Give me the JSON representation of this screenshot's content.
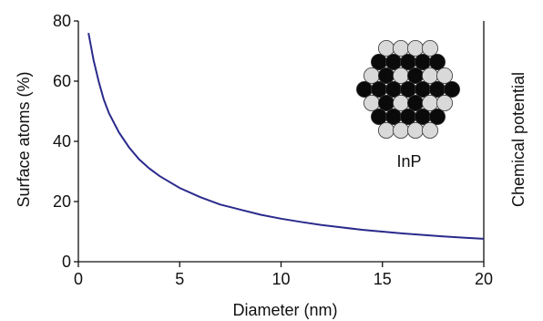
{
  "chart_data": {
    "type": "line",
    "xlabel": "Diameter (nm)",
    "ylabel": "Surface atoms (%)",
    "y2label": "Chemical potential",
    "xlim": [
      0,
      20
    ],
    "ylim": [
      0,
      80
    ],
    "x_ticks": [
      0,
      5,
      10,
      15,
      20
    ],
    "y_ticks": [
      0,
      20,
      40,
      60,
      80
    ],
    "x_tick_labels": [
      "0",
      "5",
      "10",
      "15",
      "20"
    ],
    "y_tick_labels": [
      "0",
      "20",
      "40",
      "60",
      "80"
    ],
    "grid": false,
    "series": [
      {
        "color": "#2a2a8c",
        "x": [
          0.5,
          0.75,
          1,
          1.25,
          1.5,
          2,
          2.5,
          3,
          3.5,
          4,
          4.5,
          5,
          6,
          7,
          8,
          9,
          10,
          11,
          12,
          13,
          14,
          15,
          16,
          17,
          18,
          19,
          20
        ],
        "y": [
          76,
          67,
          60,
          54,
          49.5,
          43,
          38,
          34,
          31,
          28.5,
          26.5,
          24.5,
          21.5,
          19,
          17.3,
          15.6,
          14.3,
          13.2,
          12.2,
          11.4,
          10.6,
          10,
          9.4,
          8.9,
          8.4,
          8,
          7.6
        ]
      }
    ],
    "inset": {
      "label": "InP",
      "atom_colors": {
        "light": "#d9d9d9",
        "dark": "#0a0a0a",
        "outline": "#333333"
      }
    }
  }
}
